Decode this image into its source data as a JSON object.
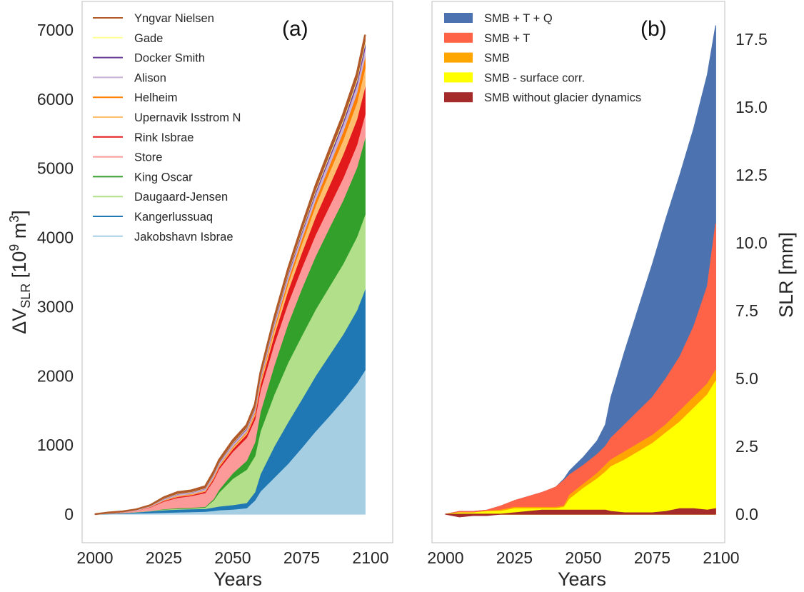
{
  "chart_data": [
    {
      "panel": "(a)",
      "type": "area",
      "stacked": true,
      "xlabel": "Years",
      "ylabel_main": "ΔV",
      "ylabel_sub": "SLR",
      "ylabel_unit_pre": " [10",
      "ylabel_unit_sup9": "9",
      "ylabel_unit_mid": " m",
      "ylabel_unit_sup3": "3",
      "ylabel_unit_post": "]",
      "xlim": [
        1996,
        2105
      ],
      "ylim": [
        -400,
        7350
      ],
      "xticks": [
        2000,
        2025,
        2050,
        2075,
        2100
      ],
      "yticks": [
        0,
        1000,
        2000,
        3000,
        4000,
        5000,
        6000,
        7000
      ],
      "ytick_labels": [
        "0",
        "1000",
        "2000",
        "3000",
        "4000",
        "5000",
        "6000",
        "7000"
      ],
      "grid": false,
      "legend_position": "top-left",
      "x": [
        2000,
        2005,
        2010,
        2015,
        2020,
        2025,
        2030,
        2035,
        2040,
        2043,
        2045,
        2050,
        2055,
        2058,
        2060,
        2065,
        2070,
        2075,
        2080,
        2085,
        2090,
        2095,
        2098
      ],
      "series": [
        {
          "name": "Jakobshavn Isbrae",
          "color": "#a6cee3",
          "values": [
            0,
            5,
            10,
            15,
            20,
            25,
            30,
            35,
            40,
            50,
            60,
            70,
            90,
            200,
            330,
            530,
            730,
            960,
            1200,
            1420,
            1650,
            1900,
            2085
          ]
        },
        {
          "name": "Kangerlussuaq",
          "color": "#1f78b4",
          "values": [
            0,
            5,
            10,
            15,
            25,
            35,
            40,
            40,
            40,
            50,
            55,
            65,
            75,
            120,
            250,
            450,
            600,
            700,
            800,
            880,
            950,
            1050,
            1170
          ]
        },
        {
          "name": "Daugaard-Jensen",
          "color": "#b2df8a",
          "values": [
            0,
            0,
            0,
            5,
            5,
            10,
            10,
            10,
            20,
            100,
            200,
            380,
            480,
            520,
            620,
            750,
            860,
            920,
            960,
            990,
            1020,
            1060,
            1080
          ]
        },
        {
          "name": "King Oscar",
          "color": "#33a02c",
          "values": [
            0,
            0,
            0,
            0,
            0,
            5,
            10,
            10,
            10,
            20,
            40,
            80,
            130,
            200,
            280,
            420,
            560,
            680,
            770,
            850,
            920,
            1000,
            1110
          ]
        },
        {
          "name": "Store",
          "color": "#fb9a99",
          "values": [
            0,
            5,
            10,
            20,
            50,
            110,
            150,
            170,
            200,
            270,
            300,
            310,
            330,
            330,
            310,
            310,
            300,
            300,
            310,
            310,
            320,
            330,
            340
          ]
        },
        {
          "name": "Rink Isbrae",
          "color": "#e31a1c",
          "values": [
            0,
            0,
            0,
            0,
            5,
            10,
            15,
            15,
            20,
            25,
            30,
            40,
            50,
            60,
            80,
            130,
            180,
            220,
            260,
            300,
            340,
            370,
            400
          ]
        },
        {
          "name": "Upernavik Isstrom N",
          "color": "#fdbf6f",
          "values": [
            0,
            0,
            0,
            0,
            5,
            5,
            10,
            10,
            10,
            15,
            15,
            20,
            25,
            30,
            40,
            70,
            100,
            130,
            160,
            190,
            210,
            240,
            270
          ]
        },
        {
          "name": "Helheim",
          "color": "#ff7f00",
          "values": [
            0,
            0,
            0,
            0,
            0,
            5,
            5,
            5,
            5,
            10,
            10,
            15,
            15,
            20,
            25,
            40,
            55,
            70,
            85,
            100,
            120,
            140,
            160
          ]
        },
        {
          "name": "Alison",
          "color": "#cab2d6",
          "values": [
            0,
            5,
            5,
            10,
            10,
            15,
            20,
            20,
            25,
            30,
            30,
            35,
            35,
            40,
            45,
            55,
            65,
            75,
            85,
            95,
            105,
            115,
            125
          ]
        },
        {
          "name": "Docker Smith",
          "color": "#6a3d9a",
          "values": [
            0,
            0,
            0,
            0,
            0,
            5,
            5,
            5,
            5,
            10,
            10,
            10,
            15,
            15,
            15,
            20,
            25,
            30,
            35,
            40,
            45,
            55,
            65
          ]
        },
        {
          "name": "Gade",
          "color": "#ffff99",
          "values": [
            0,
            0,
            0,
            0,
            0,
            5,
            5,
            5,
            5,
            5,
            5,
            10,
            10,
            10,
            10,
            15,
            15,
            20,
            20,
            25,
            25,
            30,
            35
          ]
        },
        {
          "name": "Yngvar Nielsen",
          "color": "#b15928",
          "values": [
            0,
            5,
            5,
            5,
            10,
            15,
            20,
            20,
            25,
            30,
            30,
            35,
            35,
            40,
            40,
            50,
            55,
            60,
            65,
            70,
            75,
            80,
            90
          ]
        }
      ]
    },
    {
      "panel": "(b)",
      "type": "area",
      "stacked": false,
      "xlabel": "Years",
      "ylabel_right": "SLR [mm]",
      "xlim": [
        1996,
        2105
      ],
      "ylim": [
        -1.0,
        18.5
      ],
      "xticks": [
        2000,
        2025,
        2050,
        2075,
        2100
      ],
      "yticks": [
        0.0,
        2.5,
        5.0,
        7.5,
        10.0,
        12.5,
        15.0,
        17.5
      ],
      "ytick_labels": [
        "0.0",
        "2.5",
        "5.0",
        "7.5",
        "10.0",
        "12.5",
        "15.0",
        "17.5"
      ],
      "grid": false,
      "legend_position": "top-left",
      "x": [
        2000,
        2005,
        2010,
        2015,
        2020,
        2025,
        2030,
        2035,
        2040,
        2043,
        2045,
        2050,
        2055,
        2058,
        2060,
        2065,
        2070,
        2075,
        2080,
        2085,
        2090,
        2095,
        2098
      ],
      "series": [
        {
          "name": "SMB + T + Q",
          "color": "#4c72b0",
          "values": [
            0.0,
            0.1,
            0.1,
            0.15,
            0.3,
            0.5,
            0.65,
            0.8,
            1.0,
            1.3,
            1.6,
            2.1,
            2.7,
            3.3,
            4.3,
            6.0,
            7.6,
            9.2,
            10.9,
            12.5,
            14.2,
            16.2,
            18.0
          ]
        },
        {
          "name": "SMB + T",
          "color": "#ff6347",
          "values": [
            0.0,
            0.1,
            0.1,
            0.15,
            0.3,
            0.5,
            0.65,
            0.8,
            1.0,
            1.25,
            1.45,
            1.8,
            2.2,
            2.5,
            2.8,
            3.3,
            3.8,
            4.3,
            5.0,
            5.8,
            6.9,
            8.4,
            10.7
          ]
        },
        {
          "name": "SMB",
          "color": "#ffa500",
          "values": [
            0.0,
            0.05,
            0.05,
            0.1,
            0.15,
            0.25,
            0.25,
            0.25,
            0.25,
            0.3,
            0.7,
            1.1,
            1.5,
            1.8,
            2.0,
            2.3,
            2.6,
            2.9,
            3.3,
            3.8,
            4.3,
            4.8,
            5.3
          ]
        },
        {
          "name": "SMB - surface corr.",
          "color": "#ffff00",
          "values": [
            0.0,
            0.05,
            0.05,
            0.1,
            0.1,
            0.2,
            0.2,
            0.2,
            0.2,
            0.25,
            0.55,
            0.95,
            1.3,
            1.55,
            1.75,
            2.0,
            2.3,
            2.6,
            3.0,
            3.4,
            3.9,
            4.4,
            4.9
          ]
        },
        {
          "name": "SMB without glacier dynamics",
          "color": "#a52a2a",
          "values": [
            0.0,
            -0.1,
            -0.05,
            -0.05,
            0.0,
            0.05,
            0.1,
            0.15,
            0.15,
            0.15,
            0.15,
            0.15,
            0.15,
            0.15,
            0.1,
            0.05,
            0.05,
            0.05,
            0.1,
            0.2,
            0.2,
            0.15,
            0.2
          ]
        }
      ]
    }
  ]
}
